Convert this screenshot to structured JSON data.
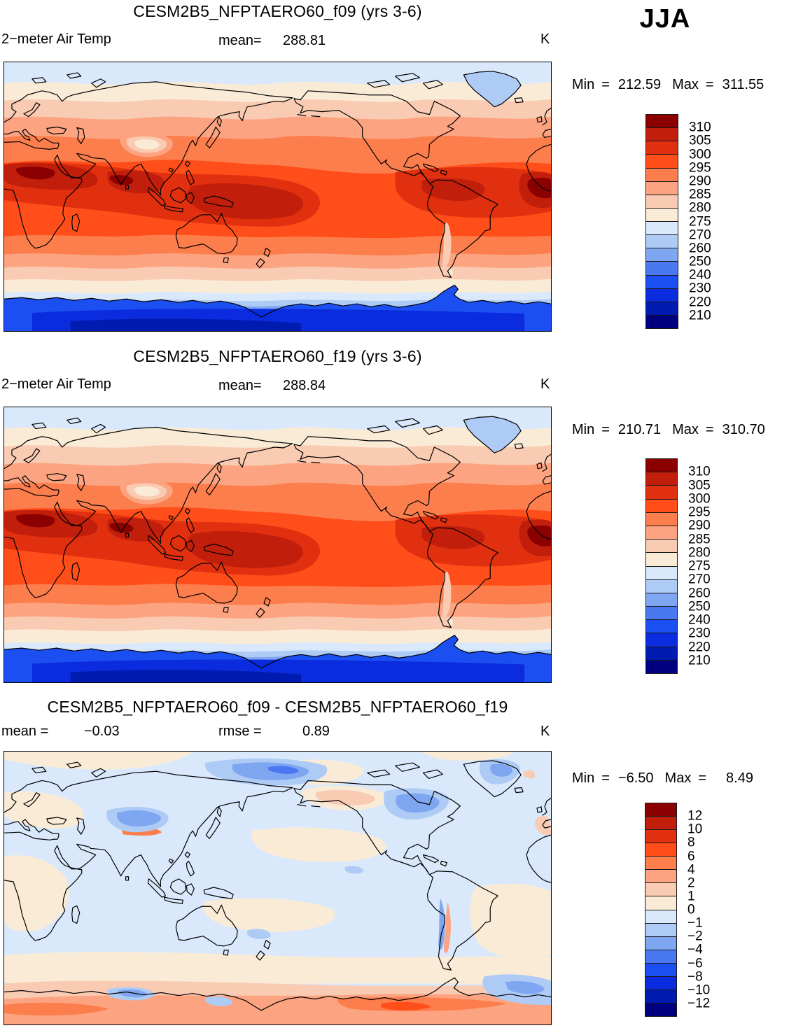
{
  "season_label": "JJA",
  "palette": [
    "#8B0000",
    "#C21E0C",
    "#E1300F",
    "#FF4E1A",
    "#FD7E4D",
    "#FCA481",
    "#FACBB3",
    "#FAEBD7",
    "#D9E9FB",
    "#AECBF6",
    "#7FA6F1",
    "#4A78F0",
    "#1C4FF2",
    "#0A2BDE",
    "#001CB0",
    "#000080"
  ],
  "panels": [
    {
      "title": "CESM2B5_NFPTAERO60_f09 (yrs 3-6)",
      "var_label": "2−meter Air Temp",
      "mean_label": "mean=",
      "mean_value": "288.81",
      "units": "K",
      "min_label": "Min",
      "equals": "=",
      "min_value": "212.59",
      "max_label": "Max",
      "max_value": "311.55",
      "colorbar_labels": [
        "310",
        "305",
        "300",
        "295",
        "290",
        "285",
        "280",
        "275",
        "270",
        "260",
        "250",
        "240",
        "230",
        "220",
        "210"
      ]
    },
    {
      "title": "CESM2B5_NFPTAERO60_f19 (yrs 3-6)",
      "var_label": "2−meter Air Temp",
      "mean_label": "mean=",
      "mean_value": "288.84",
      "units": "K",
      "min_label": "Min",
      "equals": "=",
      "min_value": "210.71",
      "max_label": "Max",
      "max_value": "310.70",
      "colorbar_labels": [
        "310",
        "305",
        "300",
        "295",
        "290",
        "285",
        "280",
        "275",
        "270",
        "260",
        "250",
        "240",
        "230",
        "220",
        "210"
      ]
    },
    {
      "title": "CESM2B5_NFPTAERO60_f09 - CESM2B5_NFPTAERO60_f19",
      "mean_label": "mean =",
      "mean_value": "−0.03",
      "rmse_label": "rmse =",
      "rmse_value": "0.89",
      "units": "K",
      "min_label": "Min",
      "equals": "=",
      "min_value": "−6.50",
      "max_label": "Max",
      "max_value": "8.49",
      "colorbar_labels": [
        "12",
        "10",
        "8",
        "6",
        "4",
        "2",
        "1",
        "0",
        "−1",
        "−2",
        "−4",
        "−6",
        "−8",
        "−10",
        "−12"
      ]
    }
  ],
  "chart_data": [
    {
      "type": "heatmap",
      "panel": "top",
      "title": "CESM2B5_NFPTAERO60_f09 (yrs 3-6)",
      "variable": "2-meter Air Temp",
      "season": "JJA",
      "units": "K",
      "mean": 288.81,
      "min": 212.59,
      "max": 311.55,
      "contour_levels": [
        210,
        220,
        230,
        240,
        250,
        260,
        270,
        275,
        280,
        285,
        290,
        295,
        300,
        305,
        310
      ],
      "colormap": "blue-white-red, 16 bands",
      "projection": "global cylindrical equidistant, Pacific-centered",
      "legend_position": "right"
    },
    {
      "type": "heatmap",
      "panel": "middle",
      "title": "CESM2B5_NFPTAERO60_f19 (yrs 3-6)",
      "variable": "2-meter Air Temp",
      "season": "JJA",
      "units": "K",
      "mean": 288.84,
      "min": 210.71,
      "max": 310.7,
      "contour_levels": [
        210,
        220,
        230,
        240,
        250,
        260,
        270,
        275,
        280,
        285,
        290,
        295,
        300,
        305,
        310
      ],
      "colormap": "blue-white-red, 16 bands",
      "projection": "global cylindrical equidistant, Pacific-centered",
      "legend_position": "right"
    },
    {
      "type": "heatmap",
      "panel": "bottom",
      "title": "CESM2B5_NFPTAERO60_f09 - CESM2B5_NFPTAERO60_f19",
      "variable": "2-meter Air Temp difference",
      "season": "JJA",
      "units": "K",
      "mean": -0.03,
      "rmse": 0.89,
      "min": -6.5,
      "max": 8.49,
      "contour_levels": [
        -12,
        -10,
        -8,
        -6,
        -4,
        -2,
        -1,
        0,
        1,
        2,
        4,
        6,
        8,
        10,
        12
      ],
      "colormap": "blue-white-red, 16 bands",
      "projection": "global cylindrical equidistant, Pacific-centered",
      "legend_position": "right"
    }
  ]
}
